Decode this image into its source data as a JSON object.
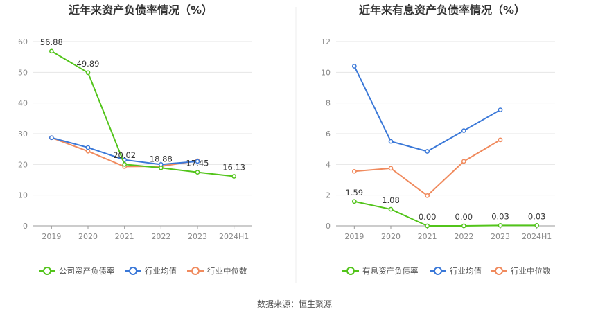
{
  "source": "数据来源：恒生聚源",
  "chart_data": [
    {
      "type": "line",
      "title": "近年来资产负债率情况（%）",
      "categories": [
        "2019",
        "2020",
        "2021",
        "2022",
        "2023",
        "2024H1"
      ],
      "ylim": [
        0,
        60
      ],
      "yticks": [
        0,
        10,
        20,
        30,
        40,
        50,
        60
      ],
      "grid": true,
      "legend_position": "bottom",
      "series": [
        {
          "name": "公司资产负债率",
          "color": "#52c41a",
          "values": [
            56.88,
            49.89,
            20.02,
            18.88,
            17.45,
            16.13
          ],
          "labels": [
            "56.88",
            "49.89",
            "20.02",
            "18.88",
            "17.45",
            "16.13"
          ]
        },
        {
          "name": "行业均值",
          "color": "#3a78d8",
          "values": [
            28.7,
            25.5,
            21.5,
            20.0,
            21.0,
            null
          ]
        },
        {
          "name": "行业中位数",
          "color": "#f08a5d",
          "values": [
            28.7,
            24.3,
            19.3,
            19.4,
            21.2,
            null
          ]
        }
      ]
    },
    {
      "type": "line",
      "title": "近年来有息资产负债率情况（%）",
      "categories": [
        "2019",
        "2020",
        "2021",
        "2022",
        "2023",
        "2024H1"
      ],
      "ylim": [
        0,
        12
      ],
      "yticks": [
        0,
        2,
        4,
        6,
        8,
        10,
        12
      ],
      "grid": true,
      "legend_position": "bottom",
      "series": [
        {
          "name": "有息资产负债率",
          "color": "#52c41a",
          "values": [
            1.59,
            1.08,
            0.0,
            0.0,
            0.03,
            0.03
          ],
          "labels": [
            "1.59",
            "1.08",
            "0.00",
            "0.00",
            "0.03",
            "0.03"
          ]
        },
        {
          "name": "行业均值",
          "color": "#3a78d8",
          "values": [
            10.4,
            5.5,
            4.85,
            6.2,
            7.55,
            null
          ]
        },
        {
          "name": "行业中位数",
          "color": "#f08a5d",
          "values": [
            3.55,
            3.75,
            1.97,
            4.2,
            5.6,
            null
          ]
        }
      ]
    }
  ]
}
